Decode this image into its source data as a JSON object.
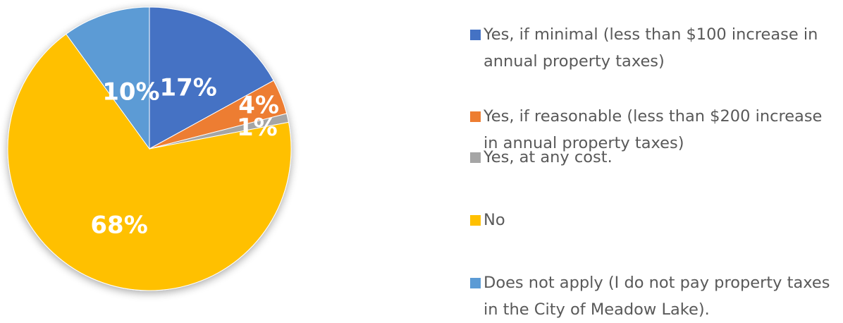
{
  "chart_data": {
    "type": "pie",
    "title": "",
    "legend_position": "right",
    "slices": [
      {
        "label": "Yes, if minimal (less than $100 increase in annual property taxes)",
        "value": 17,
        "display": "17%",
        "color": "#4472C4"
      },
      {
        "label": "Yes, if reasonable (less than $200 increase in annual property taxes)",
        "value": 4,
        "display": "4%",
        "color": "#ED7D31"
      },
      {
        "label": "Yes, at any cost.",
        "value": 1,
        "display": "1%",
        "color": "#A5A5A5"
      },
      {
        "label": "No",
        "value": 68,
        "display": "68%",
        "color": "#FFC000"
      },
      {
        "label": "Does not apply (I do not pay property taxes in the City of Meadow Lake).",
        "value": 10,
        "display": "10%",
        "color": "#5B9BD5"
      }
    ]
  }
}
